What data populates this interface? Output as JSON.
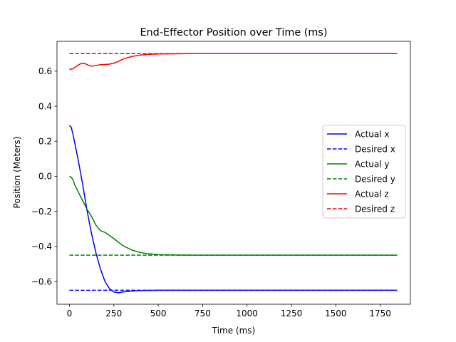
{
  "chart_data": {
    "type": "line",
    "title": "End-Effector Position over Time (ms)",
    "xlabel": "Time (ms)",
    "ylabel": "Position (Meters)",
    "xlim": [
      -70,
      1920
    ],
    "ylim": [
      -0.73,
      0.77
    ],
    "xticks": [
      0,
      250,
      500,
      750,
      1000,
      1250,
      1500,
      1750
    ],
    "yticks": [
      -0.6,
      -0.4,
      -0.2,
      0.0,
      0.2,
      0.4,
      0.6
    ],
    "xtick_labels": [
      "0",
      "250",
      "500",
      "750",
      "1000",
      "1250",
      "1500",
      "1750"
    ],
    "ytick_labels": [
      "−0.6",
      "−0.4",
      "−0.2",
      "0.0",
      "0.2",
      "0.4",
      "0.6"
    ],
    "grid": false,
    "legend_position": "center-right",
    "series": [
      {
        "name": "Actual x",
        "color": "#0000ff",
        "style": "solid",
        "x": [
          0,
          10,
          20,
          30,
          50,
          75,
          100,
          125,
          150,
          175,
          200,
          225,
          250,
          275,
          300,
          325,
          350,
          400,
          450,
          500,
          600,
          700,
          800,
          1000,
          1200,
          1400,
          1600,
          1845
        ],
        "y": [
          0.29,
          0.28,
          0.24,
          0.19,
          0.09,
          -0.05,
          -0.2,
          -0.33,
          -0.44,
          -0.53,
          -0.6,
          -0.64,
          -0.66,
          -0.665,
          -0.66,
          -0.658,
          -0.655,
          -0.652,
          -0.651,
          -0.65,
          -0.65,
          -0.65,
          -0.65,
          -0.65,
          -0.65,
          -0.65,
          -0.65,
          -0.65
        ]
      },
      {
        "name": "Desired x",
        "color": "#0000ff",
        "style": "dashed",
        "x": [
          0,
          1845
        ],
        "y": [
          -0.65,
          -0.65
        ]
      },
      {
        "name": "Actual y",
        "color": "#008000",
        "style": "solid",
        "x": [
          0,
          10,
          20,
          30,
          50,
          75,
          100,
          125,
          150,
          175,
          200,
          250,
          300,
          350,
          400,
          450,
          500,
          600,
          700,
          800,
          1000,
          1200,
          1400,
          1600,
          1845
        ],
        "y": [
          0.0,
          -0.005,
          -0.02,
          -0.05,
          -0.09,
          -0.14,
          -0.19,
          -0.23,
          -0.28,
          -0.31,
          -0.32,
          -0.355,
          -0.395,
          -0.42,
          -0.435,
          -0.443,
          -0.447,
          -0.449,
          -0.45,
          -0.45,
          -0.45,
          -0.45,
          -0.45,
          -0.45,
          -0.45
        ]
      },
      {
        "name": "Desired y",
        "color": "#008000",
        "style": "dashed",
        "x": [
          0,
          1845
        ],
        "y": [
          -0.45,
          -0.45
        ]
      },
      {
        "name": "Actual z",
        "color": "#ff0000",
        "style": "solid",
        "x": [
          0,
          15,
          30,
          50,
          70,
          90,
          110,
          130,
          150,
          175,
          200,
          225,
          250,
          275,
          300,
          350,
          400,
          450,
          500,
          600,
          700,
          800,
          1000,
          1200,
          1400,
          1600,
          1845
        ],
        "y": [
          0.61,
          0.612,
          0.62,
          0.635,
          0.645,
          0.642,
          0.632,
          0.628,
          0.632,
          0.637,
          0.638,
          0.64,
          0.645,
          0.655,
          0.668,
          0.683,
          0.692,
          0.696,
          0.698,
          0.699,
          0.7,
          0.7,
          0.7,
          0.7,
          0.7,
          0.7,
          0.7
        ]
      },
      {
        "name": "Desired z",
        "color": "#ff0000",
        "style": "dashed",
        "x": [
          0,
          1845
        ],
        "y": [
          0.7,
          0.7
        ]
      }
    ]
  }
}
